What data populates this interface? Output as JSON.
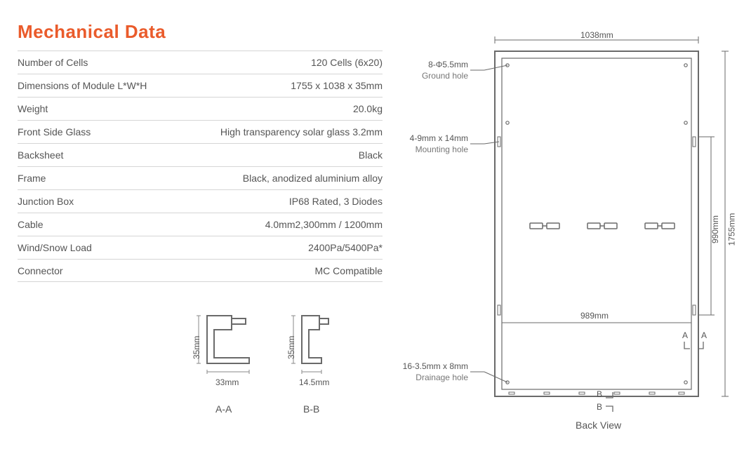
{
  "title": "Mechanical Data",
  "specs": [
    {
      "label": "Number of Cells",
      "value": "120 Cells (6x20)"
    },
    {
      "label": "Dimensions of Module L*W*H",
      "value": "1755 x 1038 x 35mm"
    },
    {
      "label": "Weight",
      "value": "20.0kg"
    },
    {
      "label": "Front Side Glass",
      "value": "High transparency solar glass 3.2mm"
    },
    {
      "label": "Backsheet",
      "value": "Black"
    },
    {
      "label": "Frame",
      "value": "Black, anodized aluminium alloy"
    },
    {
      "label": "Junction Box",
      "value": "IP68 Rated, 3 Diodes"
    },
    {
      "label": "Cable",
      "value": "4.0mm2,300mm / 1200mm"
    },
    {
      "label": "Wind/Snow Load",
      "value": "2400Pa/5400Pa*"
    },
    {
      "label": "Connector",
      "value": "MC Compatible"
    }
  ],
  "cross_sections": {
    "a": {
      "label": "A-A",
      "height": "35mm",
      "width": "33mm"
    },
    "b": {
      "label": "B-B",
      "height": "35mm",
      "width": "14.5mm"
    }
  },
  "back_view": {
    "title": "Back View",
    "top_dim": "1038mm",
    "inner_dim": "989mm",
    "right_outer": "1755mm",
    "right_inner": "990mm",
    "callout_ground": {
      "l1": "8-Φ5.5mm",
      "l2": "Ground hole"
    },
    "callout_mount": {
      "l1": "4-9mm x 14mm",
      "l2": "Mounting hole"
    },
    "callout_drain": {
      "l1": "16-3.5mm x 8mm",
      "l2": "Drainage hole"
    },
    "section_a": "A",
    "section_b": "B"
  },
  "style": {
    "accent": "#ea5b2b",
    "stroke": "#6a6a6a",
    "stroke_light": "#a0a0a0",
    "text": "#555555"
  }
}
